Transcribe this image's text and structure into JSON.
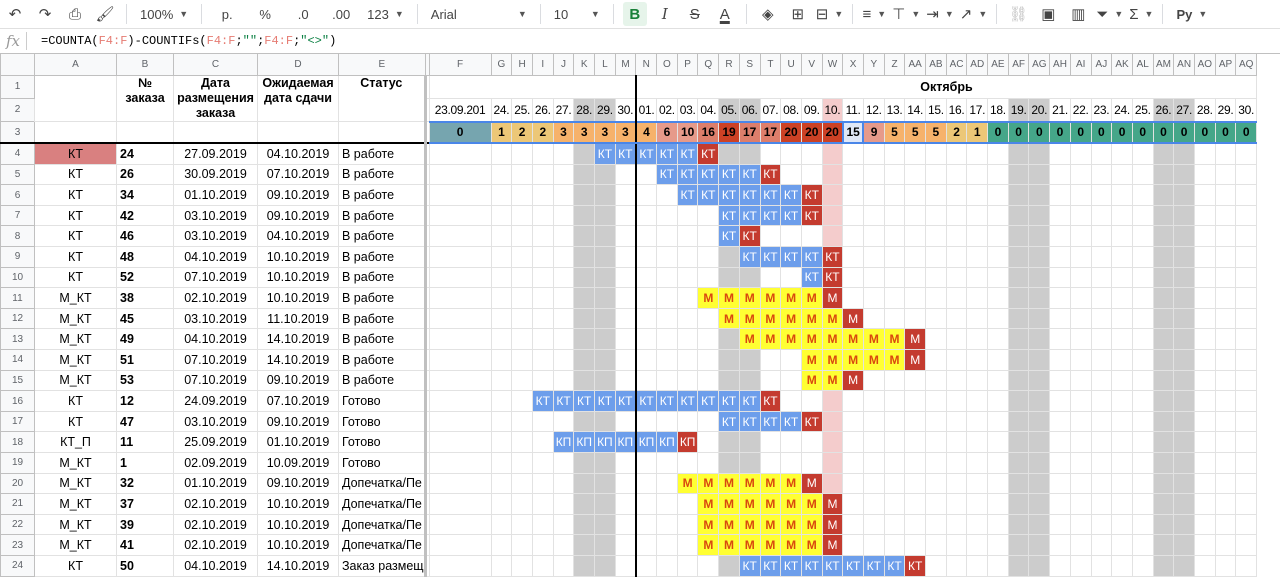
{
  "toolbar": {
    "zoom": "100%",
    "currency": "р.",
    "percent": "%",
    "dec_less": ".0",
    "dec_more": ".00",
    "format_more": "123",
    "font": "Arial",
    "font_size": "10",
    "bold": "B",
    "italic": "I",
    "strike": "S",
    "text_color": "A",
    "function": "Σ",
    "input_tool": "Ру"
  },
  "formula_bar": {
    "fx": "fx",
    "tokens": [
      {
        "t": "=COUNTA(",
        "k": ""
      },
      {
        "t": "F4:F",
        "k": "ref"
      },
      {
        "t": ")-COUNTIFs(",
        "k": ""
      },
      {
        "t": "F4:F",
        "k": "ref"
      },
      {
        "t": ";",
        "k": ""
      },
      {
        "t": "\"\"",
        "k": "str"
      },
      {
        "t": ";",
        "k": ""
      },
      {
        "t": "F4:F",
        "k": "ref"
      },
      {
        "t": ";",
        "k": ""
      },
      {
        "t": "\"<>\"",
        "k": "str"
      },
      {
        "t": ")",
        "k": ""
      }
    ]
  },
  "columns": [
    "A",
    "B",
    "C",
    "D",
    "E",
    "F",
    "G",
    "H",
    "I",
    "J",
    "K",
    "L",
    "M",
    "N",
    "O",
    "P",
    "Q",
    "R",
    "S",
    "T",
    "U",
    "V",
    "W",
    "X",
    "Y",
    "Z",
    "AA",
    "AB",
    "AC",
    "AD",
    "AE",
    "AF",
    "AG",
    "AH",
    "AI",
    "AJ",
    "AK",
    "AL",
    "AM",
    "AN",
    "AO",
    "AP",
    "AQ"
  ],
  "header": {
    "col_a": "",
    "order_no": "№ заказа",
    "placed_date": "Дата размещения заказа",
    "due_date": "Ожидаемая дата сдачи",
    "status": "Статус",
    "month": "Октябрь"
  },
  "timeline_dates": [
    "23.09.201",
    "24.",
    "25.",
    "26.",
    "27.",
    "28.",
    "29.",
    "30.",
    "01.",
    "02.",
    "03.",
    "04.",
    "05.",
    "06.",
    "07.",
    "08.",
    "09.",
    "10.",
    "11.",
    "12.",
    "13.",
    "14.",
    "15.",
    "16.",
    "17.",
    "18.",
    "19.",
    "20.",
    "21.",
    "22.",
    "23.",
    "24.",
    "25.",
    "26.",
    "27.",
    "28.",
    "29.",
    "30."
  ],
  "timeline_counts": [
    "0",
    "1",
    "2",
    "2",
    "3",
    "3",
    "3",
    "3",
    "4",
    "6",
    "10",
    "16",
    "19",
    "17",
    "17",
    "20",
    "20",
    "20",
    "15",
    "9",
    "5",
    "5",
    "5",
    "2",
    "1",
    "0",
    "0",
    "0",
    "0",
    "0",
    "0",
    "0",
    "0",
    "0",
    "0",
    "0",
    "0",
    "0"
  ],
  "orders": [
    {
      "type": "КТ",
      "no": "24",
      "placed": "27.09.2019",
      "due": "04.10.2019",
      "status": "В работе"
    },
    {
      "type": "КТ",
      "no": "26",
      "placed": "30.09.2019",
      "due": "07.10.2019",
      "status": "В работе"
    },
    {
      "type": "КТ",
      "no": "34",
      "placed": "01.10.2019",
      "due": "09.10.2019",
      "status": "В работе"
    },
    {
      "type": "КТ",
      "no": "42",
      "placed": "03.10.2019",
      "due": "09.10.2019",
      "status": "В работе"
    },
    {
      "type": "КТ",
      "no": "46",
      "placed": "03.10.2019",
      "due": "04.10.2019",
      "status": "В работе"
    },
    {
      "type": "КТ",
      "no": "48",
      "placed": "04.10.2019",
      "due": "10.10.2019",
      "status": "В работе"
    },
    {
      "type": "КТ",
      "no": "52",
      "placed": "07.10.2019",
      "due": "10.10.2019",
      "status": "В работе"
    },
    {
      "type": "М_КТ",
      "no": "38",
      "placed": "02.10.2019",
      "due": "10.10.2019",
      "status": "В работе"
    },
    {
      "type": "М_КТ",
      "no": "45",
      "placed": "03.10.2019",
      "due": "11.10.2019",
      "status": "В работе"
    },
    {
      "type": "М_КТ",
      "no": "49",
      "placed": "04.10.2019",
      "due": "14.10.2019",
      "status": "В работе"
    },
    {
      "type": "М_КТ",
      "no": "51",
      "placed": "07.10.2019",
      "due": "14.10.2019",
      "status": "В работе"
    },
    {
      "type": "М_КТ",
      "no": "53",
      "placed": "07.10.2019",
      "due": "09.10.2019",
      "status": "В работе"
    },
    {
      "type": "КТ",
      "no": "12",
      "placed": "24.09.2019",
      "due": "07.10.2019",
      "status": "Готово"
    },
    {
      "type": "КТ",
      "no": "47",
      "placed": "03.10.2019",
      "due": "09.10.2019",
      "status": "Готово"
    },
    {
      "type": "КТ_П",
      "no": "11",
      "placed": "25.09.2019",
      "due": "01.10.2019",
      "status": "Готово"
    },
    {
      "type": "М_КТ",
      "no": "1",
      "placed": "02.09.2019",
      "due": "10.09.2019",
      "status": "Готово"
    },
    {
      "type": "М_КТ",
      "no": "32",
      "placed": "01.10.2019",
      "due": "09.10.2019",
      "status": "Допечатка/Пе"
    },
    {
      "type": "М_КТ",
      "no": "37",
      "placed": "02.10.2019",
      "due": "10.10.2019",
      "status": "Допечатка/Пе"
    },
    {
      "type": "М_КТ",
      "no": "39",
      "placed": "02.10.2019",
      "due": "10.10.2019",
      "status": "Допечатка/Пе"
    },
    {
      "type": "М_КТ",
      "no": "41",
      "placed": "02.10.2019",
      "due": "10.10.2019",
      "status": "Допечатка/Пе"
    },
    {
      "type": "КТ",
      "no": "50",
      "placed": "04.10.2019",
      "due": "14.10.2019",
      "status": "Заказ размещ"
    }
  ],
  "gantt": [
    {
      "s": 6,
      "e": 11,
      "lbl": "КТ"
    },
    {
      "s": 9,
      "e": 14,
      "lbl": "КТ"
    },
    {
      "s": 10,
      "e": 16,
      "lbl": "КТ"
    },
    {
      "s": 12,
      "e": 16,
      "lbl": "КТ"
    },
    {
      "s": 12,
      "e": 13,
      "lbl": "КТ"
    },
    {
      "s": 13,
      "e": 17,
      "lbl": "КТ"
    },
    {
      "s": 16,
      "e": 17,
      "lbl": "КТ"
    },
    {
      "s": 11,
      "e": 17,
      "lbl": "М"
    },
    {
      "s": 12,
      "e": 18,
      "lbl": "М"
    },
    {
      "s": 13,
      "e": 21,
      "lbl": "М"
    },
    {
      "s": 16,
      "e": 21,
      "lbl": "М"
    },
    {
      "s": 16,
      "e": 18,
      "lbl": "М"
    },
    {
      "s": 3,
      "e": 14,
      "lbl": "КТ"
    },
    {
      "s": 12,
      "e": 16,
      "lbl": "КТ"
    },
    {
      "s": 4,
      "e": 10,
      "lbl": "КП"
    },
    {
      "s": -1,
      "e": -1,
      "lbl": ""
    },
    {
      "s": 10,
      "e": 16,
      "lbl": "М"
    },
    {
      "s": 11,
      "e": 17,
      "lbl": "М"
    },
    {
      "s": 11,
      "e": 17,
      "lbl": "М"
    },
    {
      "s": 11,
      "e": 17,
      "lbl": "М"
    },
    {
      "s": 13,
      "e": 21,
      "lbl": "КТ"
    }
  ],
  "weekend_cols": [
    5,
    6,
    12,
    13,
    26,
    27,
    33,
    34
  ],
  "today_col": 17,
  "colors": {
    "kt": "#6d9eeb",
    "m": "#ffff33",
    "overdue": "#c43b2f",
    "today": "#f4cccc",
    "weekend": "#cccccc",
    "chip": "#d98080"
  }
}
